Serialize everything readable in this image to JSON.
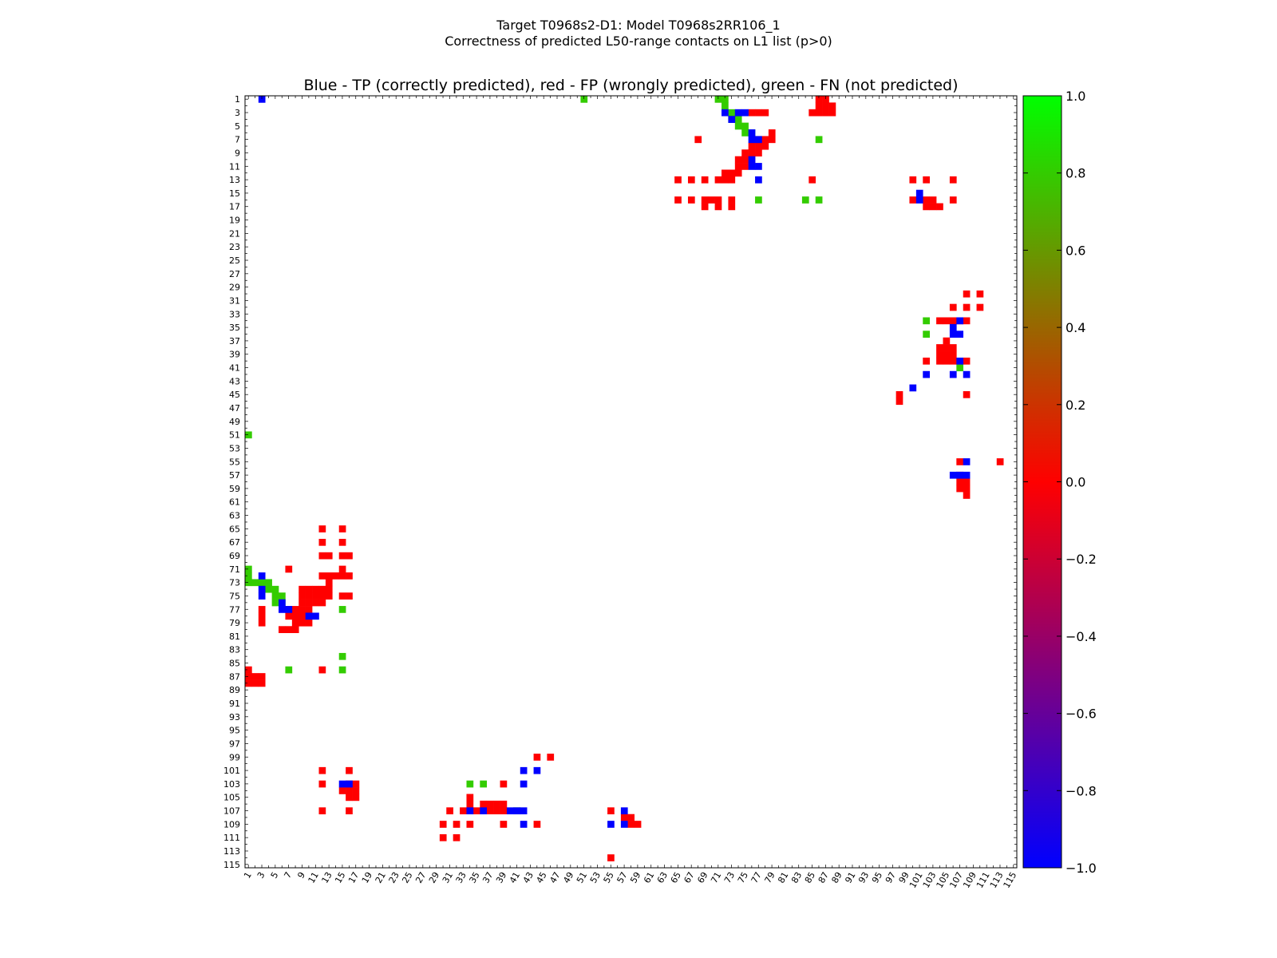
{
  "figure": {
    "suptitle_line1": "Target T0968s2-D1: Model T0968s2RR106_1",
    "suptitle_line2": "Correctness of predicted L50-range contacts on L1 list (p>0)"
  },
  "chart_data": {
    "type": "heatmap",
    "title": "Blue - TP (correctly predicted), red - FP (wrongly predicted), green - FN (not predicted)",
    "xlabel": "",
    "ylabel": "",
    "n_residues": 115,
    "x_range": [
      1,
      115
    ],
    "y_range": [
      1,
      115
    ],
    "y_inverted": true,
    "x_tick_labels": [
      "1",
      "3",
      "5",
      "7",
      "9",
      "11",
      "13",
      "15",
      "17",
      "19",
      "21",
      "23",
      "25",
      "27",
      "29",
      "31",
      "33",
      "35",
      "37",
      "39",
      "41",
      "43",
      "45",
      "47",
      "49",
      "51",
      "53",
      "55",
      "57",
      "59",
      "61",
      "63",
      "65",
      "67",
      "69",
      "71",
      "73",
      "75",
      "77",
      "79",
      "81",
      "83",
      "85",
      "87",
      "89",
      "91",
      "93",
      "95",
      "97",
      "99",
      "101",
      "103",
      "105",
      "107",
      "109",
      "111",
      "113",
      "115"
    ],
    "y_tick_labels": [
      "1",
      "3",
      "5",
      "7",
      "9",
      "11",
      "13",
      "15",
      "17",
      "19",
      "21",
      "23",
      "25",
      "27",
      "29",
      "31",
      "33",
      "35",
      "37",
      "39",
      "41",
      "43",
      "45",
      "47",
      "49",
      "51",
      "53",
      "55",
      "57",
      "59",
      "61",
      "63",
      "65",
      "67",
      "69",
      "71",
      "73",
      "75",
      "77",
      "79",
      "81",
      "83",
      "85",
      "87",
      "89",
      "91",
      "93",
      "95",
      "97",
      "99",
      "101",
      "103",
      "105",
      "107",
      "109",
      "111",
      "113",
      "115"
    ],
    "colorbar": {
      "vmin": -1.0,
      "vmax": 1.0,
      "ticks": [
        "1.0",
        "0.8",
        "0.6",
        "0.4",
        "0.2",
        "0.0",
        "−0.2",
        "−0.4",
        "−0.6",
        "−0.8",
        "−1.0"
      ],
      "colors": [
        "#0000ff",
        "#ff0000",
        "#00ff00"
      ]
    },
    "legend": {
      "tp_color": "#0000ff",
      "fp_color": "#ff0000",
      "fn_color": "#33cc00"
    },
    "cells_tp": [
      [
        1,
        3
      ],
      [
        3,
        72
      ],
      [
        3,
        74
      ],
      [
        3,
        75
      ],
      [
        4,
        73
      ],
      [
        6,
        76
      ],
      [
        7,
        76
      ],
      [
        7,
        77
      ],
      [
        10,
        76
      ],
      [
        11,
        76
      ],
      [
        11,
        77
      ],
      [
        13,
        77
      ],
      [
        15,
        101
      ],
      [
        16,
        101
      ],
      [
        34,
        107
      ],
      [
        35,
        106
      ],
      [
        36,
        106
      ],
      [
        36,
        107
      ],
      [
        40,
        107
      ],
      [
        42,
        102
      ],
      [
        42,
        106
      ],
      [
        42,
        108
      ],
      [
        44,
        100
      ],
      [
        55,
        108
      ],
      [
        57,
        106
      ],
      [
        57,
        107
      ],
      [
        57,
        108
      ],
      [
        72,
        3
      ],
      [
        74,
        3
      ],
      [
        75,
        3
      ],
      [
        76,
        6
      ],
      [
        77,
        6
      ],
      [
        77,
        7
      ],
      [
        78,
        10
      ],
      [
        78,
        11
      ],
      [
        103,
        15
      ],
      [
        103,
        16
      ],
      [
        101,
        42
      ],
      [
        101,
        44
      ],
      [
        103,
        42
      ],
      [
        107,
        34
      ],
      [
        107,
        36
      ],
      [
        107,
        40
      ],
      [
        107,
        41
      ],
      [
        107,
        42
      ],
      [
        109,
        42
      ],
      [
        109,
        55
      ],
      [
        107,
        57
      ],
      [
        109,
        57
      ]
    ],
    "cells_fp": [
      [
        1,
        86
      ],
      [
        1,
        87
      ],
      [
        2,
        86
      ],
      [
        2,
        87
      ],
      [
        2,
        88
      ],
      [
        3,
        85
      ],
      [
        3,
        86
      ],
      [
        3,
        87
      ],
      [
        3,
        88
      ],
      [
        3,
        76
      ],
      [
        3,
        77
      ],
      [
        3,
        78
      ],
      [
        6,
        79
      ],
      [
        7,
        68
      ],
      [
        7,
        77
      ],
      [
        7,
        78
      ],
      [
        7,
        79
      ],
      [
        8,
        76
      ],
      [
        8,
        77
      ],
      [
        8,
        78
      ],
      [
        9,
        75
      ],
      [
        9,
        76
      ],
      [
        9,
        77
      ],
      [
        10,
        74
      ],
      [
        10,
        75
      ],
      [
        10,
        76
      ],
      [
        11,
        74
      ],
      [
        11,
        75
      ],
      [
        12,
        72
      ],
      [
        12,
        73
      ],
      [
        12,
        74
      ],
      [
        13,
        71
      ],
      [
        13,
        72
      ],
      [
        13,
        65
      ],
      [
        13,
        67
      ],
      [
        13,
        69
      ],
      [
        13,
        73
      ],
      [
        13,
        85
      ],
      [
        13,
        100
      ],
      [
        13,
        102
      ],
      [
        13,
        106
      ],
      [
        16,
        65
      ],
      [
        16,
        67
      ],
      [
        16,
        69
      ],
      [
        16,
        70
      ],
      [
        16,
        71
      ],
      [
        16,
        73
      ],
      [
        16,
        100
      ],
      [
        16,
        102
      ],
      [
        16,
        103
      ],
      [
        16,
        106
      ],
      [
        17,
        69
      ],
      [
        17,
        71
      ],
      [
        17,
        73
      ],
      [
        17,
        102
      ],
      [
        17,
        103
      ],
      [
        17,
        104
      ],
      [
        30,
        108
      ],
      [
        30,
        110
      ],
      [
        32,
        106
      ],
      [
        32,
        108
      ],
      [
        32,
        110
      ],
      [
        34,
        104
      ],
      [
        34,
        105
      ],
      [
        34,
        106
      ],
      [
        34,
        107
      ],
      [
        34,
        108
      ],
      [
        37,
        105
      ],
      [
        38,
        104
      ],
      [
        38,
        105
      ],
      [
        38,
        106
      ],
      [
        39,
        104
      ],
      [
        39,
        105
      ],
      [
        39,
        106
      ],
      [
        40,
        102
      ],
      [
        40,
        104
      ],
      [
        40,
        105
      ],
      [
        40,
        106
      ],
      [
        40,
        108
      ],
      [
        45,
        98
      ],
      [
        45,
        108
      ],
      [
        46,
        98
      ],
      [
        55,
        107
      ],
      [
        55,
        113
      ],
      [
        57,
        107
      ],
      [
        58,
        107
      ],
      [
        58,
        108
      ],
      [
        59,
        107
      ],
      [
        59,
        108
      ],
      [
        60,
        108
      ],
      [
        65,
        12
      ],
      [
        65,
        15
      ],
      [
        67,
        12
      ],
      [
        67,
        15
      ],
      [
        69,
        12
      ],
      [
        69,
        13
      ],
      [
        69,
        15
      ],
      [
        69,
        16
      ],
      [
        71,
        7
      ],
      [
        71,
        15
      ],
      [
        72,
        12
      ],
      [
        72,
        13
      ],
      [
        72,
        14
      ],
      [
        72,
        15
      ],
      [
        72,
        16
      ],
      [
        73,
        13
      ],
      [
        74,
        9
      ],
      [
        74,
        10
      ],
      [
        74,
        11
      ],
      [
        74,
        12
      ],
      [
        74,
        13
      ],
      [
        75,
        9
      ],
      [
        75,
        10
      ],
      [
        75,
        11
      ],
      [
        75,
        12
      ],
      [
        75,
        13
      ],
      [
        75,
        15
      ],
      [
        75,
        16
      ],
      [
        76,
        9
      ],
      [
        76,
        10
      ],
      [
        76,
        11
      ],
      [
        76,
        12
      ],
      [
        77,
        3
      ],
      [
        77,
        7
      ],
      [
        77,
        8
      ],
      [
        77,
        9
      ],
      [
        77,
        10
      ],
      [
        78,
        3
      ],
      [
        78,
        7
      ],
      [
        78,
        8
      ],
      [
        78,
        9
      ],
      [
        78,
        10
      ],
      [
        79,
        3
      ],
      [
        79,
        8
      ],
      [
        79,
        9
      ],
      [
        79,
        10
      ],
      [
        80,
        6
      ],
      [
        80,
        7
      ],
      [
        80,
        8
      ],
      [
        86,
        12
      ],
      [
        87,
        1
      ],
      [
        86,
        1
      ],
      [
        87,
        2
      ],
      [
        87,
        3
      ],
      [
        88,
        1
      ],
      [
        88,
        2
      ],
      [
        88,
        3
      ],
      [
        99,
        44
      ],
      [
        99,
        46
      ],
      [
        101,
        12
      ],
      [
        101,
        16
      ],
      [
        103,
        12
      ],
      [
        103,
        16
      ],
      [
        103,
        17
      ],
      [
        104,
        15
      ],
      [
        104,
        16
      ],
      [
        104,
        17
      ],
      [
        105,
        16
      ],
      [
        105,
        17
      ],
      [
        103,
        39
      ],
      [
        105,
        34
      ],
      [
        106,
        34
      ],
      [
        106,
        36
      ],
      [
        106,
        37
      ],
      [
        106,
        38
      ],
      [
        106,
        39
      ],
      [
        107,
        12
      ],
      [
        107,
        16
      ],
      [
        107,
        31
      ],
      [
        107,
        33
      ],
      [
        107,
        35
      ],
      [
        107,
        37
      ],
      [
        107,
        38
      ],
      [
        107,
        39
      ],
      [
        107,
        55
      ],
      [
        108,
        57
      ],
      [
        108,
        58
      ],
      [
        109,
        30
      ],
      [
        109,
        32
      ],
      [
        109,
        34
      ],
      [
        109,
        39
      ],
      [
        109,
        44
      ],
      [
        109,
        58
      ],
      [
        109,
        59
      ],
      [
        111,
        30
      ],
      [
        111,
        32
      ],
      [
        114,
        55
      ]
    ],
    "cells_fn": [
      [
        1,
        51
      ],
      [
        1,
        71
      ],
      [
        1,
        72
      ],
      [
        2,
        72
      ],
      [
        3,
        73
      ],
      [
        4,
        73
      ],
      [
        4,
        74
      ],
      [
        5,
        74
      ],
      [
        5,
        75
      ],
      [
        6,
        75
      ],
      [
        6,
        76
      ],
      [
        7,
        77
      ],
      [
        7,
        86
      ],
      [
        16,
        77
      ],
      [
        16,
        84
      ],
      [
        16,
        86
      ],
      [
        34,
        102
      ],
      [
        36,
        102
      ],
      [
        41,
        107
      ],
      [
        51,
        1
      ],
      [
        71,
        1
      ],
      [
        72,
        1
      ],
      [
        73,
        1
      ],
      [
        73,
        2
      ],
      [
        73,
        3
      ],
      [
        73,
        4
      ],
      [
        74,
        4
      ],
      [
        74,
        5
      ],
      [
        75,
        5
      ],
      [
        75,
        6
      ],
      [
        76,
        5
      ],
      [
        76,
        6
      ],
      [
        77,
        15
      ],
      [
        84,
        15
      ],
      [
        86,
        7
      ],
      [
        86,
        15
      ],
      [
        103,
        34
      ],
      [
        103,
        36
      ],
      [
        107,
        41
      ]
    ]
  }
}
